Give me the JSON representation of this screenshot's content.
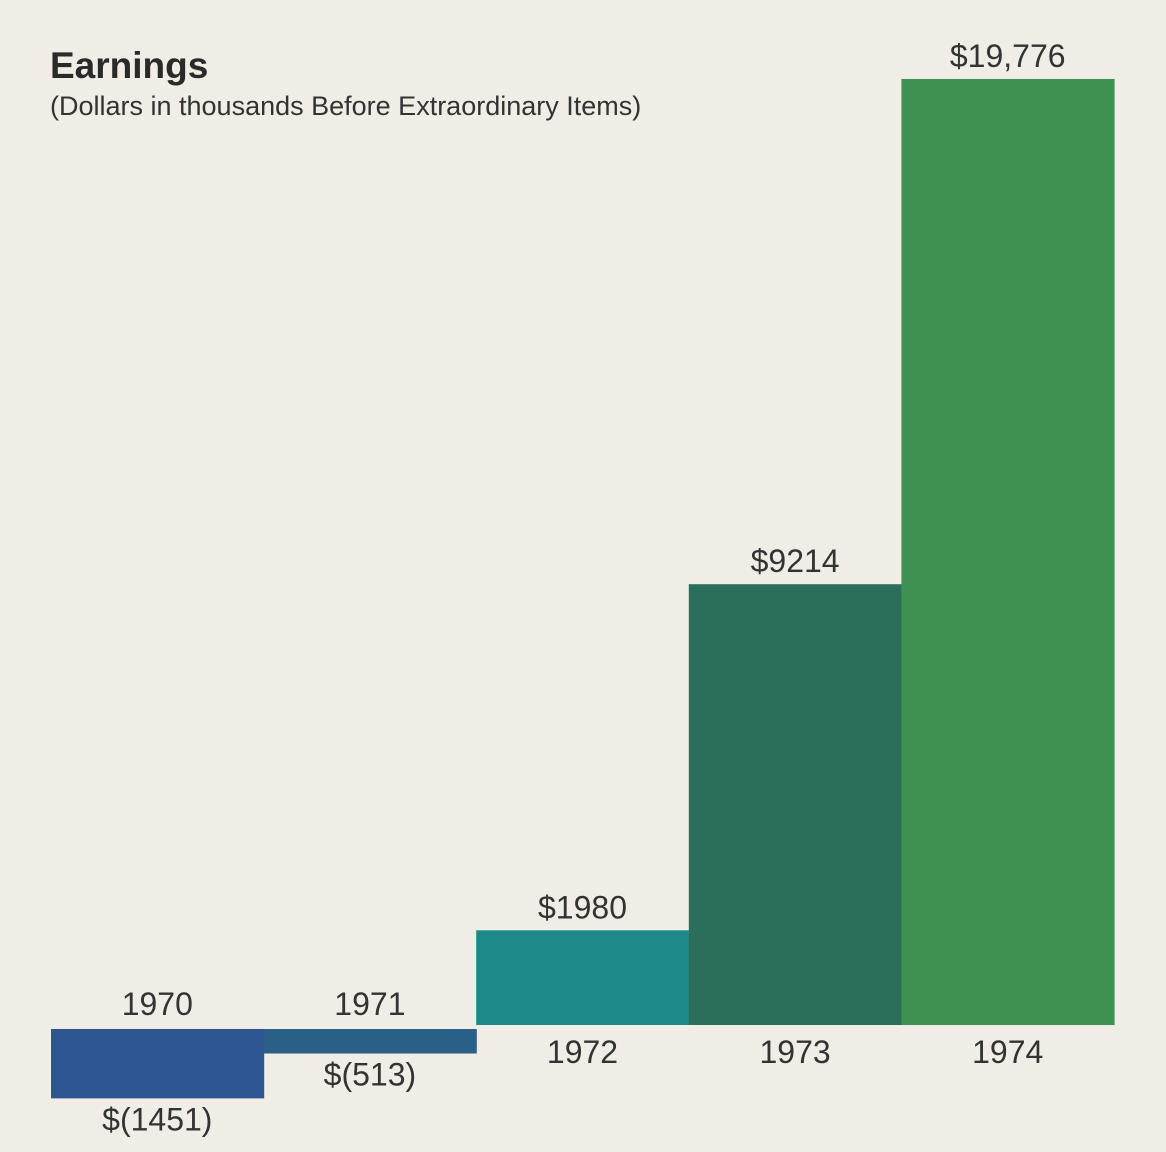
{
  "chart_data": {
    "type": "bar",
    "title": "Earnings",
    "subtitle": "(Dollars in thousands Before Extraordinary Items)",
    "categories": [
      "1970",
      "1971",
      "1972",
      "1973",
      "1974"
    ],
    "values": [
      -1451,
      -513,
      1980,
      9214,
      19776
    ],
    "value_labels": [
      "$(1451)",
      "$(513)",
      "$1980",
      "$9214",
      "$19,776"
    ],
    "colors": [
      "#2d5592",
      "#2a5f87",
      "#1d8988",
      "#2b6e5c",
      "#3e9150"
    ],
    "legend": "none",
    "grid": false
  }
}
